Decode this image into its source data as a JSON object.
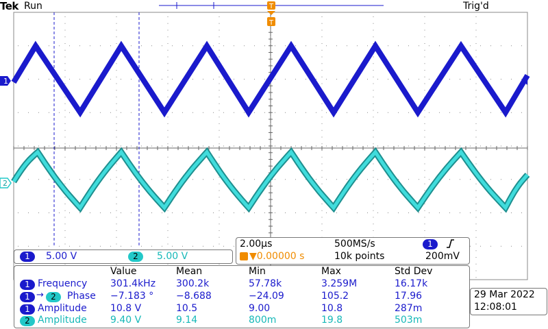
{
  "header": {
    "brand": "Tek",
    "status": "Run",
    "trigger_state": "Trig'd"
  },
  "markers": {
    "ch1": "1",
    "ch2": "2",
    "trigger": "T"
  },
  "channels": {
    "ch1": {
      "label": "1",
      "scale": "5.00 V",
      "color": "#1a1acc"
    },
    "ch2": {
      "label": "2",
      "scale": "5.00 V",
      "color": "#22c8c8"
    }
  },
  "acquisition": {
    "timebase": "2.00µs",
    "sample_rate": "500MS/s",
    "trigger_position": "▼0.00000 s",
    "record_length": "10k points",
    "trigger_source": "1",
    "trigger_slope_icon": "rising-edge-icon",
    "trigger_level": "200mV"
  },
  "measurements": {
    "headers": [
      "Value",
      "Mean",
      "Min",
      "Max",
      "Std Dev"
    ],
    "rows": [
      {
        "src": "1",
        "dst": "",
        "name": "Frequency",
        "value": "301.4kHz",
        "mean": "300.2k",
        "min": "57.78k",
        "max": "3.259M",
        "std": "16.17k"
      },
      {
        "src": "1",
        "dst": "2",
        "name": "Phase",
        "value": "−7.183 °",
        "mean": "−8.688",
        "min": "−24.09",
        "max": "105.2",
        "std": "17.96"
      },
      {
        "src": "1",
        "dst": "",
        "name": "Amplitude",
        "value": "10.8 V",
        "mean": "10.5",
        "min": "9.00",
        "max": "10.8",
        "std": "287m"
      },
      {
        "src": "2",
        "dst": "",
        "name": "Amplitude",
        "value": "9.40 V",
        "mean": "9.14",
        "min": "800m",
        "max": "19.8",
        "std": "503m"
      }
    ]
  },
  "datetime": {
    "date": "29 Mar 2022",
    "time": "12:08:01"
  }
}
